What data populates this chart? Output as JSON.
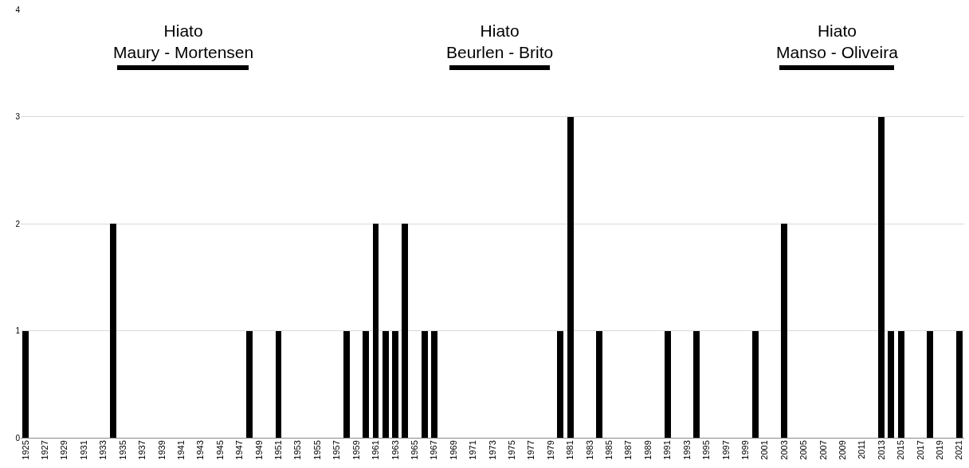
{
  "chart_data": {
    "type": "bar",
    "x": [
      1925,
      1934,
      1948,
      1951,
      1958,
      1960,
      1961,
      1962,
      1963,
      1964,
      1966,
      1967,
      1980,
      1981,
      1984,
      1991,
      1994,
      2000,
      2003,
      2013,
      2014,
      2015,
      2018,
      2021
    ],
    "values": [
      1,
      2,
      1,
      1,
      1,
      1,
      2,
      1,
      1,
      2,
      1,
      1,
      1,
      3,
      1,
      1,
      1,
      1,
      2,
      3,
      1,
      1,
      1,
      1
    ],
    "color": "#000000",
    "xlim": [
      1924.5,
      2021.5
    ],
    "xticks": [
      1925,
      1927,
      1929,
      1931,
      1933,
      1935,
      1937,
      1939,
      1941,
      1943,
      1945,
      1947,
      1949,
      1951,
      1953,
      1955,
      1957,
      1959,
      1961,
      1963,
      1965,
      1967,
      1969,
      1971,
      1973,
      1975,
      1977,
      1979,
      1981,
      1983,
      1985,
      1987,
      1989,
      1991,
      1993,
      1995,
      1997,
      1999,
      2001,
      2003,
      2005,
      2007,
      2009,
      2011,
      2013,
      2015,
      2017,
      2019,
      2021
    ],
    "ylim": [
      0,
      4
    ],
    "yticks": [
      0,
      1,
      2,
      3,
      4
    ],
    "grid": "y",
    "annotations": [
      "Hiato\nMaury - Mortensen",
      "Hiato\nBeurlen - Brito",
      "Hiato\nManso - Oliveira"
    ]
  }
}
